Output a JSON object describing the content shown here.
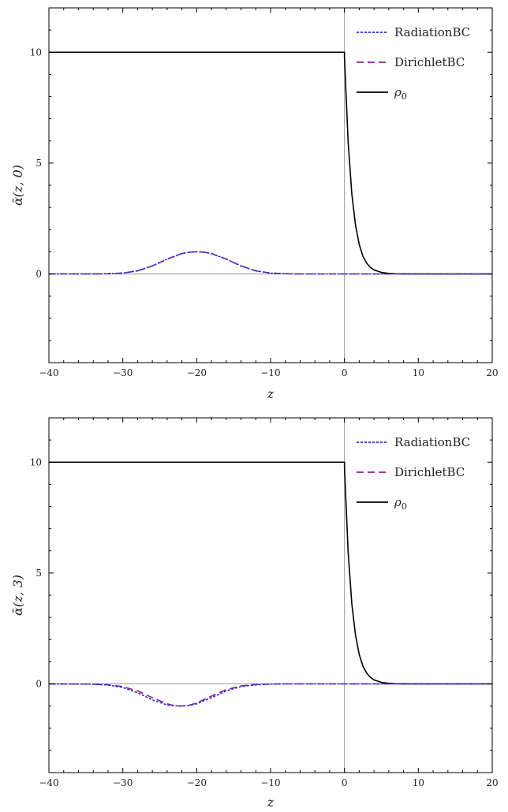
{
  "chart_data": [
    {
      "type": "line",
      "xlabel": "z",
      "ylabel": "ᾱ(z, 0)",
      "xlim": [
        -40,
        20
      ],
      "ylim": [
        -4,
        12
      ],
      "x_ticks": [
        -40,
        -30,
        -20,
        -10,
        0,
        10,
        20
      ],
      "x_tick_labels": [
        "−40",
        "−30",
        "−20",
        "−10",
        "0",
        "10",
        "20"
      ],
      "y_ticks": [
        0,
        5,
        10
      ],
      "y_tick_labels": [
        "0",
        "5",
        "10"
      ],
      "grid": false,
      "legend_position": "top-right",
      "zero_lines": true,
      "series": [
        {
          "name": "RadiationBC",
          "style": "dotted",
          "color": "#2b2bd6",
          "x": [
            -40,
            -34,
            -32,
            -30,
            -28,
            -26,
            -24,
            -22,
            -21,
            -20,
            -19,
            -18,
            -16,
            -14,
            -12,
            -10,
            -8,
            -6,
            20
          ],
          "y": [
            0,
            0.002,
            0.01,
            0.04,
            0.14,
            0.36,
            0.67,
            0.92,
            0.98,
            1.0,
            0.98,
            0.92,
            0.67,
            0.36,
            0.14,
            0.04,
            0.01,
            0,
            0
          ]
        },
        {
          "name": "DirichletBC",
          "style": "dashed",
          "color": "#8e1f8e",
          "x": [
            -40,
            -34,
            -32,
            -30,
            -28,
            -26,
            -24,
            -22,
            -21,
            -20,
            -19,
            -18,
            -16,
            -14,
            -12,
            -10,
            -8,
            -6,
            20
          ],
          "y": [
            0,
            0.002,
            0.01,
            0.04,
            0.14,
            0.36,
            0.67,
            0.92,
            0.98,
            1.0,
            0.98,
            0.92,
            0.67,
            0.36,
            0.14,
            0.04,
            0.01,
            0,
            0
          ]
        },
        {
          "name": "ρ0",
          "style": "solid",
          "color": "#000000",
          "x": [
            -40,
            0,
            0.0,
            0.5,
            1,
            1.5,
            2,
            2.5,
            3,
            3.5,
            4,
            5,
            6,
            7,
            8,
            10,
            20
          ],
          "y": [
            10,
            10,
            9.8,
            5.94,
            3.6,
            2.19,
            1.33,
            0.8,
            0.49,
            0.3,
            0.18,
            0.07,
            0.025,
            0.009,
            0.003,
            0,
            0
          ]
        }
      ]
    },
    {
      "type": "line",
      "xlabel": "z",
      "ylabel": "ᾱ(z, 3)",
      "xlim": [
        -40,
        20
      ],
      "ylim": [
        -4,
        12
      ],
      "x_ticks": [
        -40,
        -30,
        -20,
        -10,
        0,
        10,
        20
      ],
      "x_tick_labels": [
        "−40",
        "−30",
        "−20",
        "−10",
        "0",
        "10",
        "20"
      ],
      "y_ticks": [
        0,
        5,
        10
      ],
      "y_tick_labels": [
        "0",
        "5",
        "10"
      ],
      "grid": false,
      "legend_position": "top-right",
      "zero_lines": true,
      "series": [
        {
          "name": "RadiationBC",
          "style": "dotted",
          "color": "#2b2bd6",
          "x": [
            -40,
            -34,
            -32,
            -30,
            -28,
            -26,
            -24,
            -23,
            -22,
            -21,
            -20,
            -18,
            -16,
            -14,
            -12,
            -10,
            -8,
            20
          ],
          "y": [
            0,
            -0.01,
            -0.05,
            -0.16,
            -0.4,
            -0.72,
            -0.95,
            -0.99,
            -1.0,
            -0.97,
            -0.9,
            -0.62,
            -0.32,
            -0.12,
            -0.04,
            -0.01,
            0,
            0
          ]
        },
        {
          "name": "DirichletBC",
          "style": "dashed",
          "color": "#8e1f8e",
          "x": [
            -40,
            -34,
            -32,
            -30,
            -28,
            -26,
            -24,
            -23,
            -22,
            -21,
            -20,
            -18,
            -16,
            -14,
            -12,
            -10,
            -8,
            20
          ],
          "y": [
            0,
            -0.01,
            -0.04,
            -0.12,
            -0.32,
            -0.62,
            -0.9,
            -0.98,
            -1.0,
            -0.96,
            -0.86,
            -0.55,
            -0.26,
            -0.09,
            -0.03,
            -0.005,
            0,
            0
          ]
        },
        {
          "name": "ρ0",
          "style": "solid",
          "color": "#000000",
          "x": [
            -40,
            0,
            0.0,
            0.5,
            1,
            1.5,
            2,
            2.5,
            3,
            3.5,
            4,
            5,
            6,
            7,
            8,
            10,
            20
          ],
          "y": [
            10,
            10,
            9.8,
            5.94,
            3.6,
            2.19,
            1.33,
            0.8,
            0.49,
            0.3,
            0.18,
            0.07,
            0.025,
            0.009,
            0.003,
            0,
            0
          ]
        }
      ]
    }
  ]
}
